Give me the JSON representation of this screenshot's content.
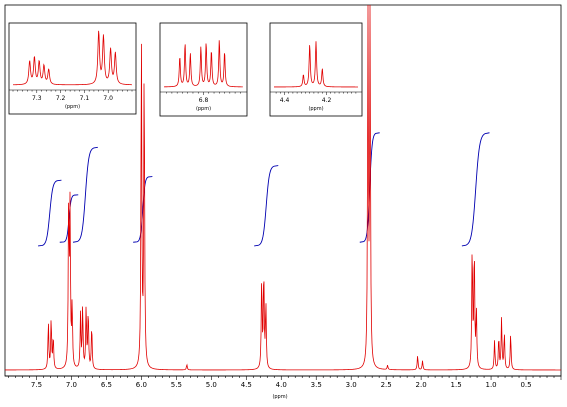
{
  "chart_data": {
    "type": "line",
    "title": "",
    "xlabel": "(ppm)",
    "ylabel": "",
    "x_reversed": true,
    "xlim": [
      7.95,
      0.0
    ],
    "ylim": [
      0,
      100
    ],
    "grid": false,
    "line_color": "#e00000",
    "integral_color": "#0000b0",
    "x_ticks": [
      7.5,
      7.0,
      6.5,
      6.0,
      5.5,
      5.0,
      4.5,
      4.0,
      3.5,
      3.0,
      2.5,
      2.0,
      1.5,
      1.0,
      0.5
    ],
    "x_tick_labels": [
      "7.5",
      "7.0",
      "6.5",
      "6.0",
      "5.5",
      "5.0",
      "4.5",
      "4.0",
      "3.5",
      "3.0",
      "2.5",
      "2.0",
      "1.5",
      "1.0",
      "0.5"
    ],
    "peaks": [
      {
        "ppm": 7.33,
        "height": 13
      },
      {
        "ppm": 7.29,
        "height": 14
      },
      {
        "ppm": 7.26,
        "height": 9
      },
      {
        "ppm": 7.04,
        "height": 45
      },
      {
        "ppm": 7.02,
        "height": 43
      },
      {
        "ppm": 6.99,
        "height": 17
      },
      {
        "ppm": 6.87,
        "height": 15
      },
      {
        "ppm": 6.84,
        "height": 17
      },
      {
        "ppm": 6.79,
        "height": 17
      },
      {
        "ppm": 6.76,
        "height": 16
      },
      {
        "ppm": 6.71,
        "height": 12
      },
      {
        "ppm": 6.0,
        "height": 92
      },
      {
        "ppm": 5.96,
        "height": 85
      },
      {
        "ppm": 5.35,
        "height": 1.5
      },
      {
        "ppm": 4.28,
        "height": 25
      },
      {
        "ppm": 4.25,
        "height": 27
      },
      {
        "ppm": 4.22,
        "height": 18
      },
      {
        "ppm": 2.76,
        "height": 100
      },
      {
        "ppm": 2.73,
        "height": 97
      },
      {
        "ppm": 2.48,
        "height": 1.2
      },
      {
        "ppm": 2.05,
        "height": 4
      },
      {
        "ppm": 1.98,
        "height": 2.5
      },
      {
        "ppm": 1.27,
        "height": 34
      },
      {
        "ppm": 1.24,
        "height": 33
      },
      {
        "ppm": 1.21,
        "height": 16
      },
      {
        "ppm": 0.95,
        "height": 8
      },
      {
        "ppm": 0.89,
        "height": 9
      },
      {
        "ppm": 0.85,
        "height": 14
      },
      {
        "ppm": 0.81,
        "height": 10
      },
      {
        "ppm": 0.72,
        "height": 10
      }
    ],
    "integrals": [
      {
        "from": 7.42,
        "to": 7.2,
        "bottom": 34,
        "top": 52
      },
      {
        "from": 7.11,
        "to": 6.96,
        "bottom": 35,
        "top": 48
      },
      {
        "from": 6.92,
        "to": 6.68,
        "bottom": 35,
        "top": 61
      },
      {
        "from": 6.06,
        "to": 5.9,
        "bottom": 35,
        "top": 53
      },
      {
        "from": 4.33,
        "to": 4.1,
        "bottom": 34,
        "top": 56
      },
      {
        "from": 2.82,
        "to": 2.65,
        "bottom": 35,
        "top": 65
      },
      {
        "from": 1.36,
        "to": 1.08,
        "bottom": 34,
        "top": 65
      }
    ],
    "insets": [
      {
        "name": "aromatic-region",
        "xlim": [
          7.4,
          6.9
        ],
        "x_ticks": [
          7.3,
          7.2,
          7.1,
          7.0
        ],
        "x_tick_labels": [
          "7.3",
          "7.2",
          "7.1",
          "7.0"
        ],
        "xlabel": "(ppm)",
        "peaks": [
          {
            "ppm": 7.33,
            "height": 40
          },
          {
            "ppm": 7.31,
            "height": 46
          },
          {
            "ppm": 7.29,
            "height": 39
          },
          {
            "ppm": 7.27,
            "height": 32
          },
          {
            "ppm": 7.25,
            "height": 26
          },
          {
            "ppm": 7.04,
            "height": 90
          },
          {
            "ppm": 7.02,
            "height": 82
          },
          {
            "ppm": 6.99,
            "height": 60
          },
          {
            "ppm": 6.97,
            "height": 54
          }
        ]
      },
      {
        "name": "aryl-region",
        "xlim": [
          6.95,
          6.65
        ],
        "x_ticks": [
          6.8
        ],
        "x_tick_labels": [
          "6.8"
        ],
        "xlabel": "(ppm)",
        "peaks": [
          {
            "ppm": 6.89,
            "height": 50
          },
          {
            "ppm": 6.87,
            "height": 72
          },
          {
            "ppm": 6.85,
            "height": 55
          },
          {
            "ppm": 6.81,
            "height": 66
          },
          {
            "ppm": 6.79,
            "height": 73
          },
          {
            "ppm": 6.77,
            "height": 60
          },
          {
            "ppm": 6.74,
            "height": 78
          },
          {
            "ppm": 6.72,
            "height": 58
          }
        ]
      },
      {
        "name": "quartet-region",
        "xlim": [
          4.45,
          4.05
        ],
        "x_ticks": [
          4.4,
          4.2
        ],
        "x_tick_labels": [
          "4.4",
          "4.2"
        ],
        "xlabel": "(ppm)",
        "peaks": [
          {
            "ppm": 4.31,
            "height": 20
          },
          {
            "ppm": 4.28,
            "height": 70
          },
          {
            "ppm": 4.25,
            "height": 75
          },
          {
            "ppm": 4.22,
            "height": 30
          }
        ]
      }
    ]
  }
}
